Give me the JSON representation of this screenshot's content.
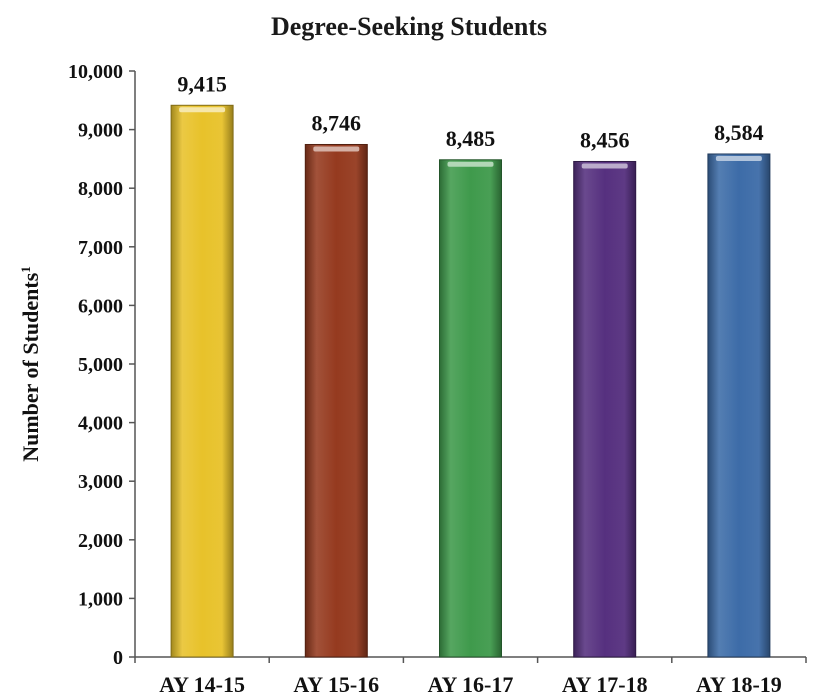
{
  "chart_data": {
    "type": "bar",
    "title": "Degree-Seeking Students",
    "ylabel": "Number of Students",
    "ylabel_superscript": "1",
    "xlabel": "",
    "categories": [
      "AY 14-15",
      "AY 15-16",
      "AY 16-17",
      "AY 17-18",
      "AY 18-19"
    ],
    "values": [
      9415,
      8746,
      8485,
      8456,
      8584
    ],
    "value_labels": [
      "9,415",
      "8,746",
      "8,485",
      "8,456",
      "8,584"
    ],
    "ylim": [
      0,
      10000
    ],
    "yticks": [
      0,
      1000,
      2000,
      3000,
      4000,
      5000,
      6000,
      7000,
      8000,
      9000,
      10000
    ],
    "ytick_labels": [
      "0",
      "1,000",
      "2,000",
      "3,000",
      "4,000",
      "5,000",
      "6,000",
      "7,000",
      "8,000",
      "9,000",
      "10,000"
    ],
    "bar_colors": [
      "#e8c22a",
      "#953a1f",
      "#3f9a4c",
      "#56307f",
      "#3d6ca8"
    ],
    "grid": false,
    "legend": "none"
  }
}
